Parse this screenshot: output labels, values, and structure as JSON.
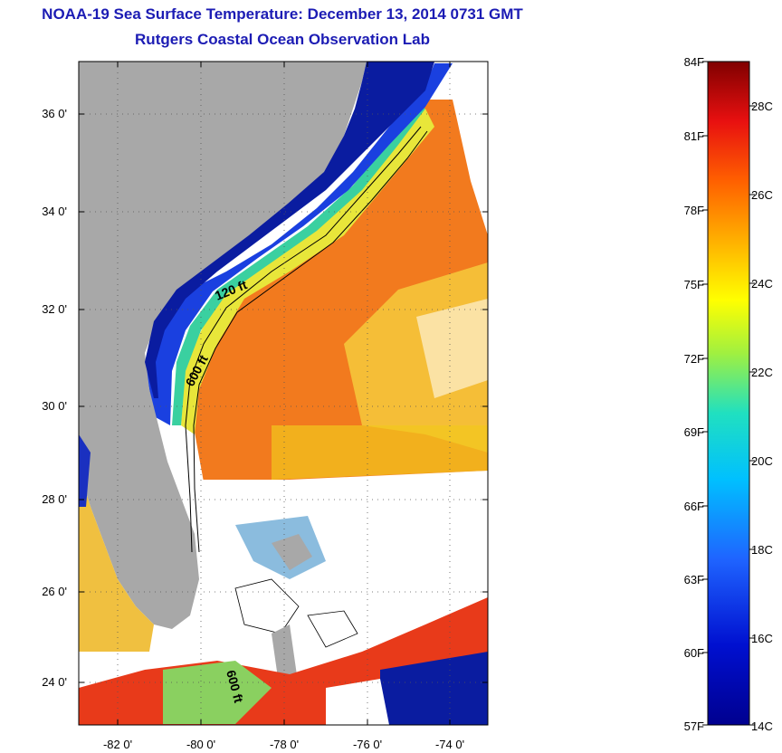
{
  "title": {
    "line1": "NOAA-19 Sea Surface Temperature:  December 13, 2014 0731 GMT",
    "line2": "Rutgers Coastal Ocean Observation Lab"
  },
  "map": {
    "lat_labels": [
      "36 0'",
      "34 0'",
      "32 0'",
      "30 0'",
      "28 0'",
      "26 0'",
      "24 0'"
    ],
    "lon_labels": [
      "-82 0'",
      "-80 0'",
      "-78 0'",
      "-76 0'",
      "-74 0'"
    ],
    "contour_labels": {
      "c120": "120 ft",
      "c600": "600 ft",
      "c600b": "600 ft"
    },
    "colors": {
      "land": "#a8a8a8",
      "cloud": "#ffffff",
      "warm": "#f47a1a",
      "mid": "#f5c21a",
      "cool": "#2a58e8",
      "cold": "#0a1a9a"
    }
  },
  "colorbar": {
    "fahrenheit": [
      "84F",
      "81F",
      "78F",
      "75F",
      "72F",
      "69F",
      "66F",
      "63F",
      "60F",
      "57F"
    ],
    "celsius": [
      "28C",
      "26C",
      "24C",
      "22C",
      "20C",
      "18C",
      "16C",
      "14C"
    ]
  }
}
